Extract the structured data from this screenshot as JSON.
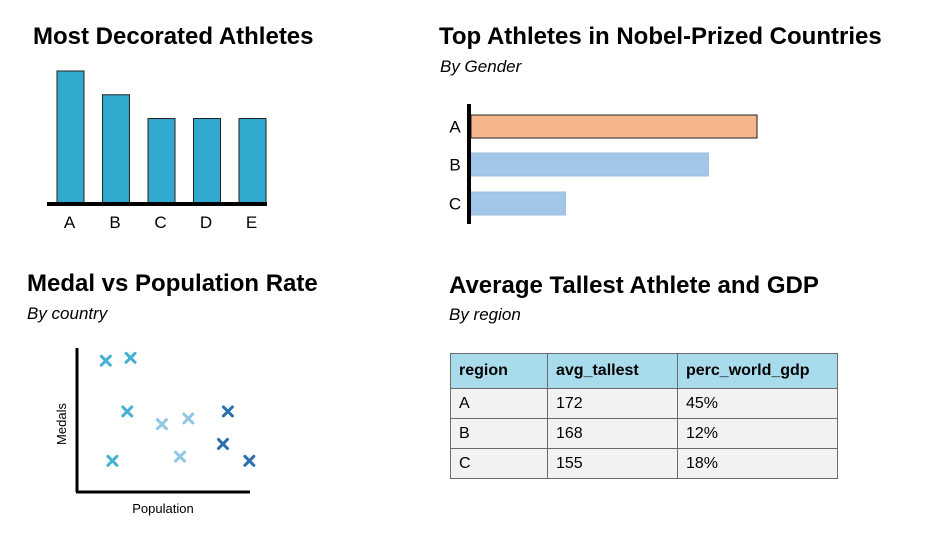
{
  "chart_data": [
    {
      "type": "bar",
      "title": "Most Decorated Athletes",
      "categories": [
        "A",
        "B",
        "C",
        "D",
        "E"
      ],
      "values": [
        100,
        82,
        64,
        64,
        64
      ],
      "ylim": [
        0,
        100
      ],
      "color": "#31a9cf"
    },
    {
      "type": "bar",
      "orientation": "horizontal",
      "title": "Top Athletes in Nobel-Prized Countries",
      "subtitle": "By Gender",
      "categories": [
        "A",
        "B",
        "C"
      ],
      "values": [
        100,
        83,
        33
      ],
      "ylim": [
        0,
        100
      ],
      "colors": [
        "#f7b58c",
        "#a3c7ea",
        "#a3c7ea"
      ]
    },
    {
      "type": "scatter",
      "title": "Medal vs Population Rate",
      "subtitle": "By country",
      "xlabel": "Population",
      "ylabel": "Medals",
      "xlim": [
        0,
        10
      ],
      "ylim": [
        0,
        10
      ],
      "marker": "x",
      "points": [
        {
          "x": 1.2,
          "y": 9.1,
          "color": "#45b1d4"
        },
        {
          "x": 2.7,
          "y": 9.3,
          "color": "#45b1d4"
        },
        {
          "x": 2.5,
          "y": 5.5,
          "color": "#45b1d4"
        },
        {
          "x": 1.6,
          "y": 2.0,
          "color": "#45b1d4"
        },
        {
          "x": 4.6,
          "y": 4.6,
          "color": "#8fc7e4"
        },
        {
          "x": 6.2,
          "y": 5.0,
          "color": "#8fc7e4"
        },
        {
          "x": 5.7,
          "y": 2.3,
          "color": "#8fc7e4"
        },
        {
          "x": 8.6,
          "y": 5.5,
          "color": "#2b6fad"
        },
        {
          "x": 8.3,
          "y": 3.2,
          "color": "#2b6fad"
        },
        {
          "x": 9.9,
          "y": 2.0,
          "color": "#2b6fad"
        }
      ]
    },
    {
      "type": "table",
      "title": "Average Tallest Athlete and GDP",
      "subtitle": "By region",
      "columns": [
        "region",
        "avg_tallest",
        "perc_world_gdp"
      ],
      "rows": [
        [
          "A",
          "172",
          "45%"
        ],
        [
          "B",
          "168",
          "12%"
        ],
        [
          "C",
          "155",
          "18%"
        ]
      ]
    }
  ]
}
